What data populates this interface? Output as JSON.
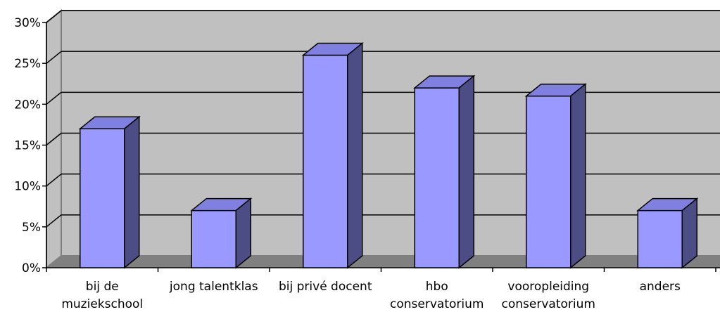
{
  "chart_data": {
    "type": "bar",
    "style": "3d-column",
    "title": "",
    "xlabel": "",
    "ylabel": "",
    "categories": [
      [
        "bij de",
        "muziekschool"
      ],
      [
        "jong talentklas"
      ],
      [
        "bij privé docent"
      ],
      [
        "hbo",
        "conservatorium"
      ],
      [
        "vooropleiding",
        "conservatorium"
      ],
      [
        "anders"
      ]
    ],
    "values": [
      17,
      7,
      26,
      22,
      21,
      7
    ],
    "ylim": [
      0,
      30
    ],
    "yticks": [
      "0%",
      "5%",
      "10%",
      "15%",
      "20%",
      "25%",
      "30%"
    ],
    "grid": true,
    "legend": "none",
    "colors": {
      "bar_front": "#9999ff",
      "bar_top": "#8080e0",
      "bar_side": "#4d4d85",
      "wall": "#c0c0c0",
      "floor": "#808080",
      "grid": "#000000"
    }
  }
}
